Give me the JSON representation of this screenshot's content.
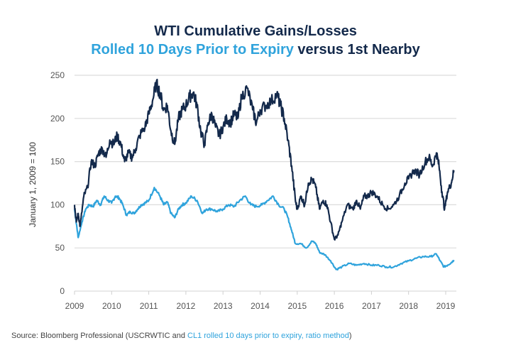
{
  "chart_data": {
    "type": "line",
    "title": "WTI Cumulative Gains/Losses",
    "subtitle": {
      "highlight": "Rolled 10 Days Prior to Expiry",
      "rest": " versus 1st Nearby"
    },
    "xlabel": "",
    "ylabel": "January 1, 2009 = 100",
    "xlim": [
      2009,
      2019.25
    ],
    "ylim": [
      0,
      250
    ],
    "grid": true,
    "x_ticks": [
      "2009",
      "2010",
      "2011",
      "2012",
      "2013",
      "2014",
      "2015",
      "2016",
      "2017",
      "2018",
      "2019"
    ],
    "y_ticks": [
      "0",
      "50",
      "100",
      "150",
      "200",
      "250"
    ],
    "series": [
      {
        "name": "USCRWTIC (1st Nearby)",
        "color": "#13294b",
        "x": [
          2009.0,
          2009.05,
          2009.1,
          2009.15,
          2009.25,
          2009.35,
          2009.45,
          2009.55,
          2009.65,
          2009.75,
          2009.85,
          2009.95,
          2010.05,
          2010.15,
          2010.25,
          2010.35,
          2010.45,
          2010.55,
          2010.65,
          2010.75,
          2010.9,
          2011.0,
          2011.1,
          2011.2,
          2011.3,
          2011.4,
          2011.5,
          2011.6,
          2011.7,
          2011.8,
          2011.9,
          2012.0,
          2012.1,
          2012.2,
          2012.3,
          2012.4,
          2012.5,
          2012.6,
          2012.7,
          2012.8,
          2012.9,
          2013.0,
          2013.1,
          2013.2,
          2013.3,
          2013.4,
          2013.5,
          2013.65,
          2013.8,
          2013.9,
          2014.0,
          2014.15,
          2014.3,
          2014.45,
          2014.55,
          2014.65,
          2014.75,
          2014.85,
          2014.95,
          2015.0,
          2015.1,
          2015.2,
          2015.3,
          2015.4,
          2015.5,
          2015.6,
          2015.7,
          2015.8,
          2015.9,
          2016.0,
          2016.1,
          2016.2,
          2016.35,
          2016.5,
          2016.6,
          2016.7,
          2016.8,
          2016.9,
          2017.0,
          2017.15,
          2017.3,
          2017.45,
          2017.6,
          2017.75,
          2017.9,
          2018.0,
          2018.15,
          2018.3,
          2018.45,
          2018.55,
          2018.65,
          2018.75,
          2018.82,
          2018.9,
          2018.97,
          2019.05,
          2019.15,
          2019.22
        ],
        "values": [
          100,
          80,
          90,
          75,
          110,
          120,
          150,
          145,
          160,
          165,
          155,
          175,
          170,
          180,
          170,
          150,
          160,
          155,
          165,
          180,
          190,
          205,
          220,
          240,
          230,
          210,
          215,
          185,
          170,
          200,
          210,
          215,
          225,
          230,
          215,
          185,
          170,
          195,
          205,
          190,
          180,
          190,
          200,
          195,
          205,
          200,
          225,
          235,
          210,
          195,
          210,
          215,
          220,
          228,
          215,
          200,
          175,
          145,
          105,
          95,
          110,
          100,
          125,
          130,
          120,
          95,
          105,
          100,
          80,
          60,
          65,
          80,
          100,
          95,
          105,
          95,
          110,
          110,
          115,
          110,
          100,
          95,
          100,
          110,
          125,
          130,
          140,
          135,
          150,
          155,
          145,
          160,
          145,
          115,
          95,
          115,
          125,
          140
        ]
      },
      {
        "name": "CL1 rolled 10 days prior to expiry",
        "color": "#2fa3dc",
        "x": [
          2009.0,
          2009.05,
          2009.1,
          2009.2,
          2009.3,
          2009.4,
          2009.5,
          2009.6,
          2009.7,
          2009.8,
          2009.9,
          2010.0,
          2010.1,
          2010.2,
          2010.3,
          2010.4,
          2010.5,
          2010.6,
          2010.7,
          2010.8,
          2010.9,
          2011.0,
          2011.15,
          2011.3,
          2011.4,
          2011.5,
          2011.6,
          2011.7,
          2011.8,
          2011.9,
          2012.0,
          2012.15,
          2012.3,
          2012.45,
          2012.55,
          2012.7,
          2012.85,
          2013.0,
          2013.15,
          2013.3,
          2013.45,
          2013.6,
          2013.75,
          2013.9,
          2014.05,
          2014.2,
          2014.35,
          2014.5,
          2014.65,
          2014.75,
          2014.85,
          2014.95,
          2015.1,
          2015.25,
          2015.4,
          2015.5,
          2015.6,
          2015.75,
          2015.9,
          2016.05,
          2016.2,
          2016.4,
          2016.6,
          2016.8,
          2017.0,
          2017.2,
          2017.4,
          2017.6,
          2017.8,
          2018.0,
          2018.2,
          2018.4,
          2018.6,
          2018.75,
          2018.85,
          2018.95,
          2019.05,
          2019.15,
          2019.22
        ],
        "values": [
          95,
          78,
          62,
          80,
          95,
          100,
          98,
          105,
          100,
          110,
          105,
          102,
          110,
          108,
          100,
          88,
          92,
          90,
          95,
          100,
          102,
          105,
          120,
          110,
          100,
          103,
          90,
          85,
          95,
          100,
          102,
          110,
          105,
          90,
          95,
          95,
          92,
          95,
          100,
          98,
          105,
          110,
          100,
          98,
          100,
          105,
          110,
          100,
          95,
          85,
          70,
          55,
          55,
          50,
          58,
          55,
          45,
          42,
          35,
          25,
          28,
          32,
          30,
          32,
          30,
          30,
          28,
          28,
          32,
          35,
          38,
          40,
          40,
          43,
          35,
          28,
          30,
          33,
          36
        ]
      }
    ]
  },
  "header": {
    "title": "WTI Cumulative Gains/Losses",
    "subtitle_highlight": "Rolled 10 Days Prior to Expiry",
    "subtitle_rest": " versus 1st Nearby"
  },
  "footer": {
    "source_prefix": "Source: Bloomberg Professional (USCRWTIC and ",
    "source_highlight": "CL1 rolled 10 days prior to expiry, ratio method",
    "source_suffix": ")"
  }
}
